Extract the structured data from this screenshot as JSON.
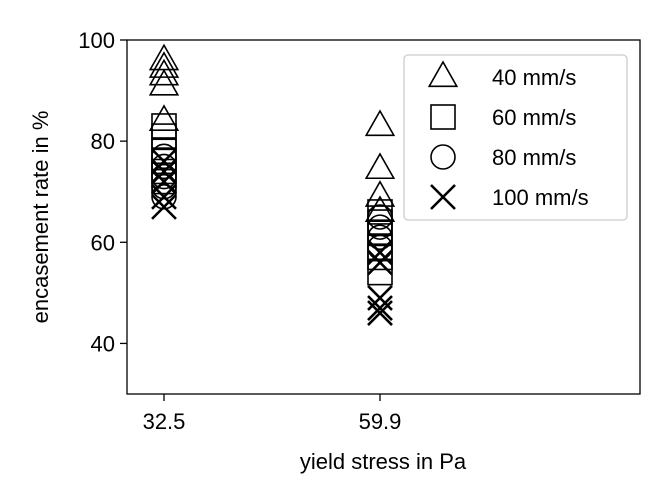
{
  "chart_data": {
    "type": "scatter",
    "xlabel": "yield stress in Pa",
    "ylabel": "encasement rate in %",
    "x_categories": [
      "32.5",
      "59.9"
    ],
    "ylim": [
      30,
      100
    ],
    "yticks": [
      40,
      60,
      80,
      100
    ],
    "grid": false,
    "legend_position": "top-right",
    "marker_color": "#000000",
    "series": [
      {
        "name": "40 mm/s",
        "marker": "triangle",
        "points": [
          {
            "x": "32.5",
            "y": 96
          },
          {
            "x": "32.5",
            "y": 94.5
          },
          {
            "x": "32.5",
            "y": 93
          },
          {
            "x": "32.5",
            "y": 91
          },
          {
            "x": "32.5",
            "y": 84
          },
          {
            "x": "59.9",
            "y": 83
          },
          {
            "x": "59.9",
            "y": 74.5
          },
          {
            "x": "59.9",
            "y": 69
          },
          {
            "x": "59.9",
            "y": 66
          }
        ]
      },
      {
        "name": "60 mm/s",
        "marker": "square",
        "points": [
          {
            "x": "32.5",
            "y": 83
          },
          {
            "x": "32.5",
            "y": 81
          },
          {
            "x": "32.5",
            "y": 78
          },
          {
            "x": "32.5",
            "y": 76
          },
          {
            "x": "32.5",
            "y": 74
          },
          {
            "x": "32.5",
            "y": 72
          },
          {
            "x": "59.9",
            "y": 66
          },
          {
            "x": "59.9",
            "y": 64
          },
          {
            "x": "59.9",
            "y": 62
          },
          {
            "x": "59.9",
            "y": 59
          },
          {
            "x": "59.9",
            "y": 57
          },
          {
            "x": "59.9",
            "y": 54
          }
        ]
      },
      {
        "name": "80 mm/s",
        "marker": "circle",
        "points": [
          {
            "x": "32.5",
            "y": 77
          },
          {
            "x": "32.5",
            "y": 75
          },
          {
            "x": "32.5",
            "y": 73
          },
          {
            "x": "32.5",
            "y": 71
          },
          {
            "x": "32.5",
            "y": 69
          },
          {
            "x": "59.9",
            "y": 65
          },
          {
            "x": "59.9",
            "y": 63
          },
          {
            "x": "59.9",
            "y": 61
          },
          {
            "x": "59.9",
            "y": 59
          }
        ]
      },
      {
        "name": "100 mm/s",
        "marker": "x",
        "points": [
          {
            "x": "32.5",
            "y": 76
          },
          {
            "x": "32.5",
            "y": 74
          },
          {
            "x": "32.5",
            "y": 72
          },
          {
            "x": "32.5",
            "y": 69
          },
          {
            "x": "32.5",
            "y": 67
          },
          {
            "x": "59.9",
            "y": 58
          },
          {
            "x": "59.9",
            "y": 56
          },
          {
            "x": "59.9",
            "y": 49
          },
          {
            "x": "59.9",
            "y": 47
          },
          {
            "x": "59.9",
            "y": 46
          }
        ]
      }
    ]
  }
}
